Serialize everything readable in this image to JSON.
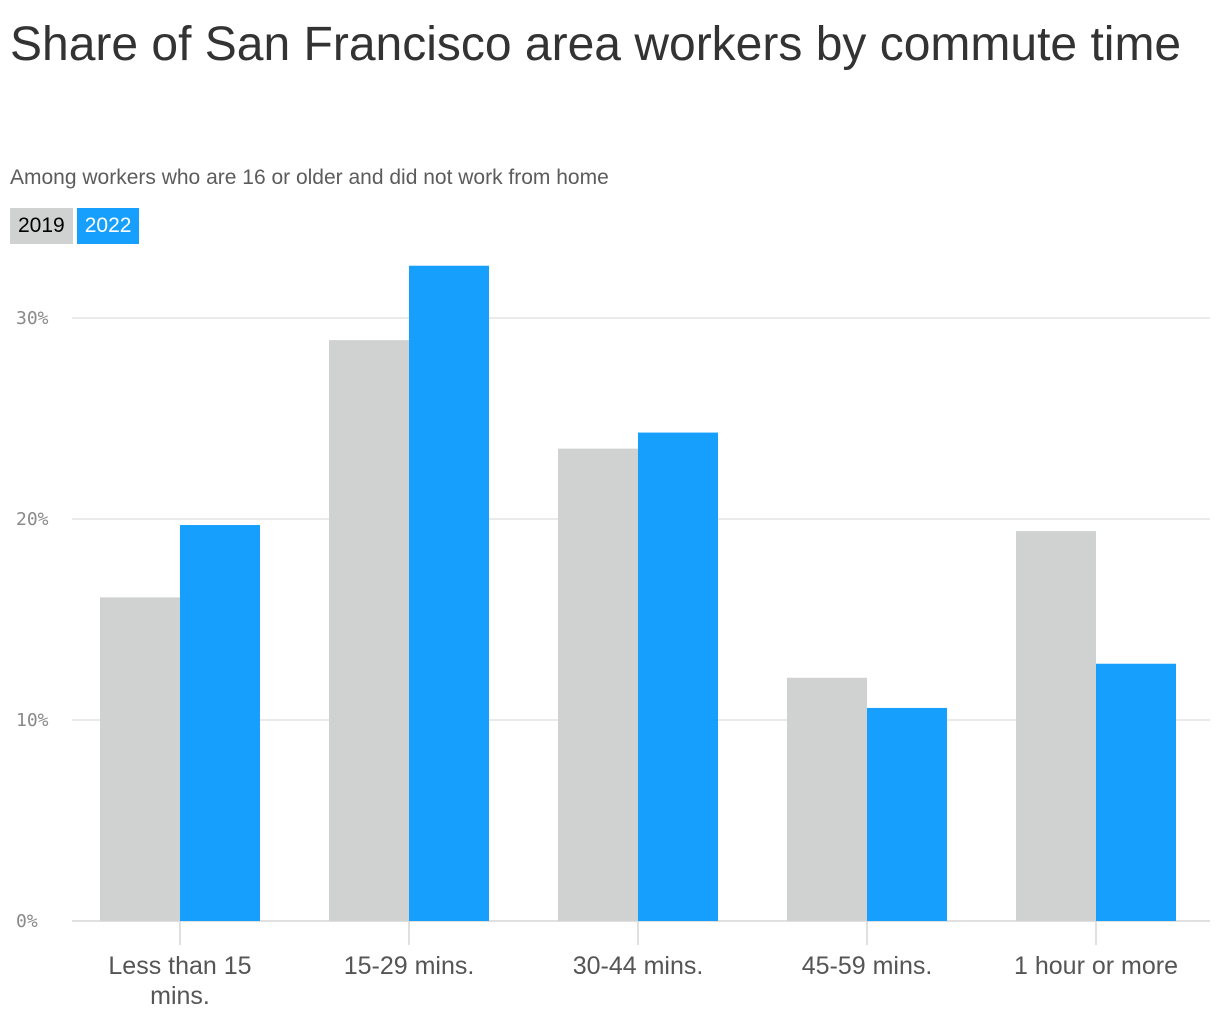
{
  "chart_data": {
    "type": "bar",
    "title": "Share of San Francisco area workers by commute time",
    "subtitle": "Among workers who are 16 or older and did not work from home",
    "categories": [
      "Less than 15 mins.",
      "15-29 mins.",
      "30-44 mins.",
      "45-59 mins.",
      "1 hour or more"
    ],
    "series": [
      {
        "name": "2019",
        "values": [
          16.1,
          28.9,
          23.5,
          12.1,
          19.4
        ],
        "color": "#d0d1d1",
        "text_color": "#000000"
      },
      {
        "name": "2022",
        "values": [
          19.7,
          32.6,
          24.3,
          10.6,
          12.8
        ],
        "color": "#169ffc",
        "text_color": "#ffffff"
      }
    ],
    "yticks": [
      0,
      10,
      20,
      30
    ],
    "ytick_labels": [
      "0%",
      "10%",
      "20%",
      "30%"
    ],
    "ylim": [
      0,
      33
    ],
    "xlabel": "",
    "ylabel": "",
    "grid": true,
    "legend_position": "top-left"
  }
}
